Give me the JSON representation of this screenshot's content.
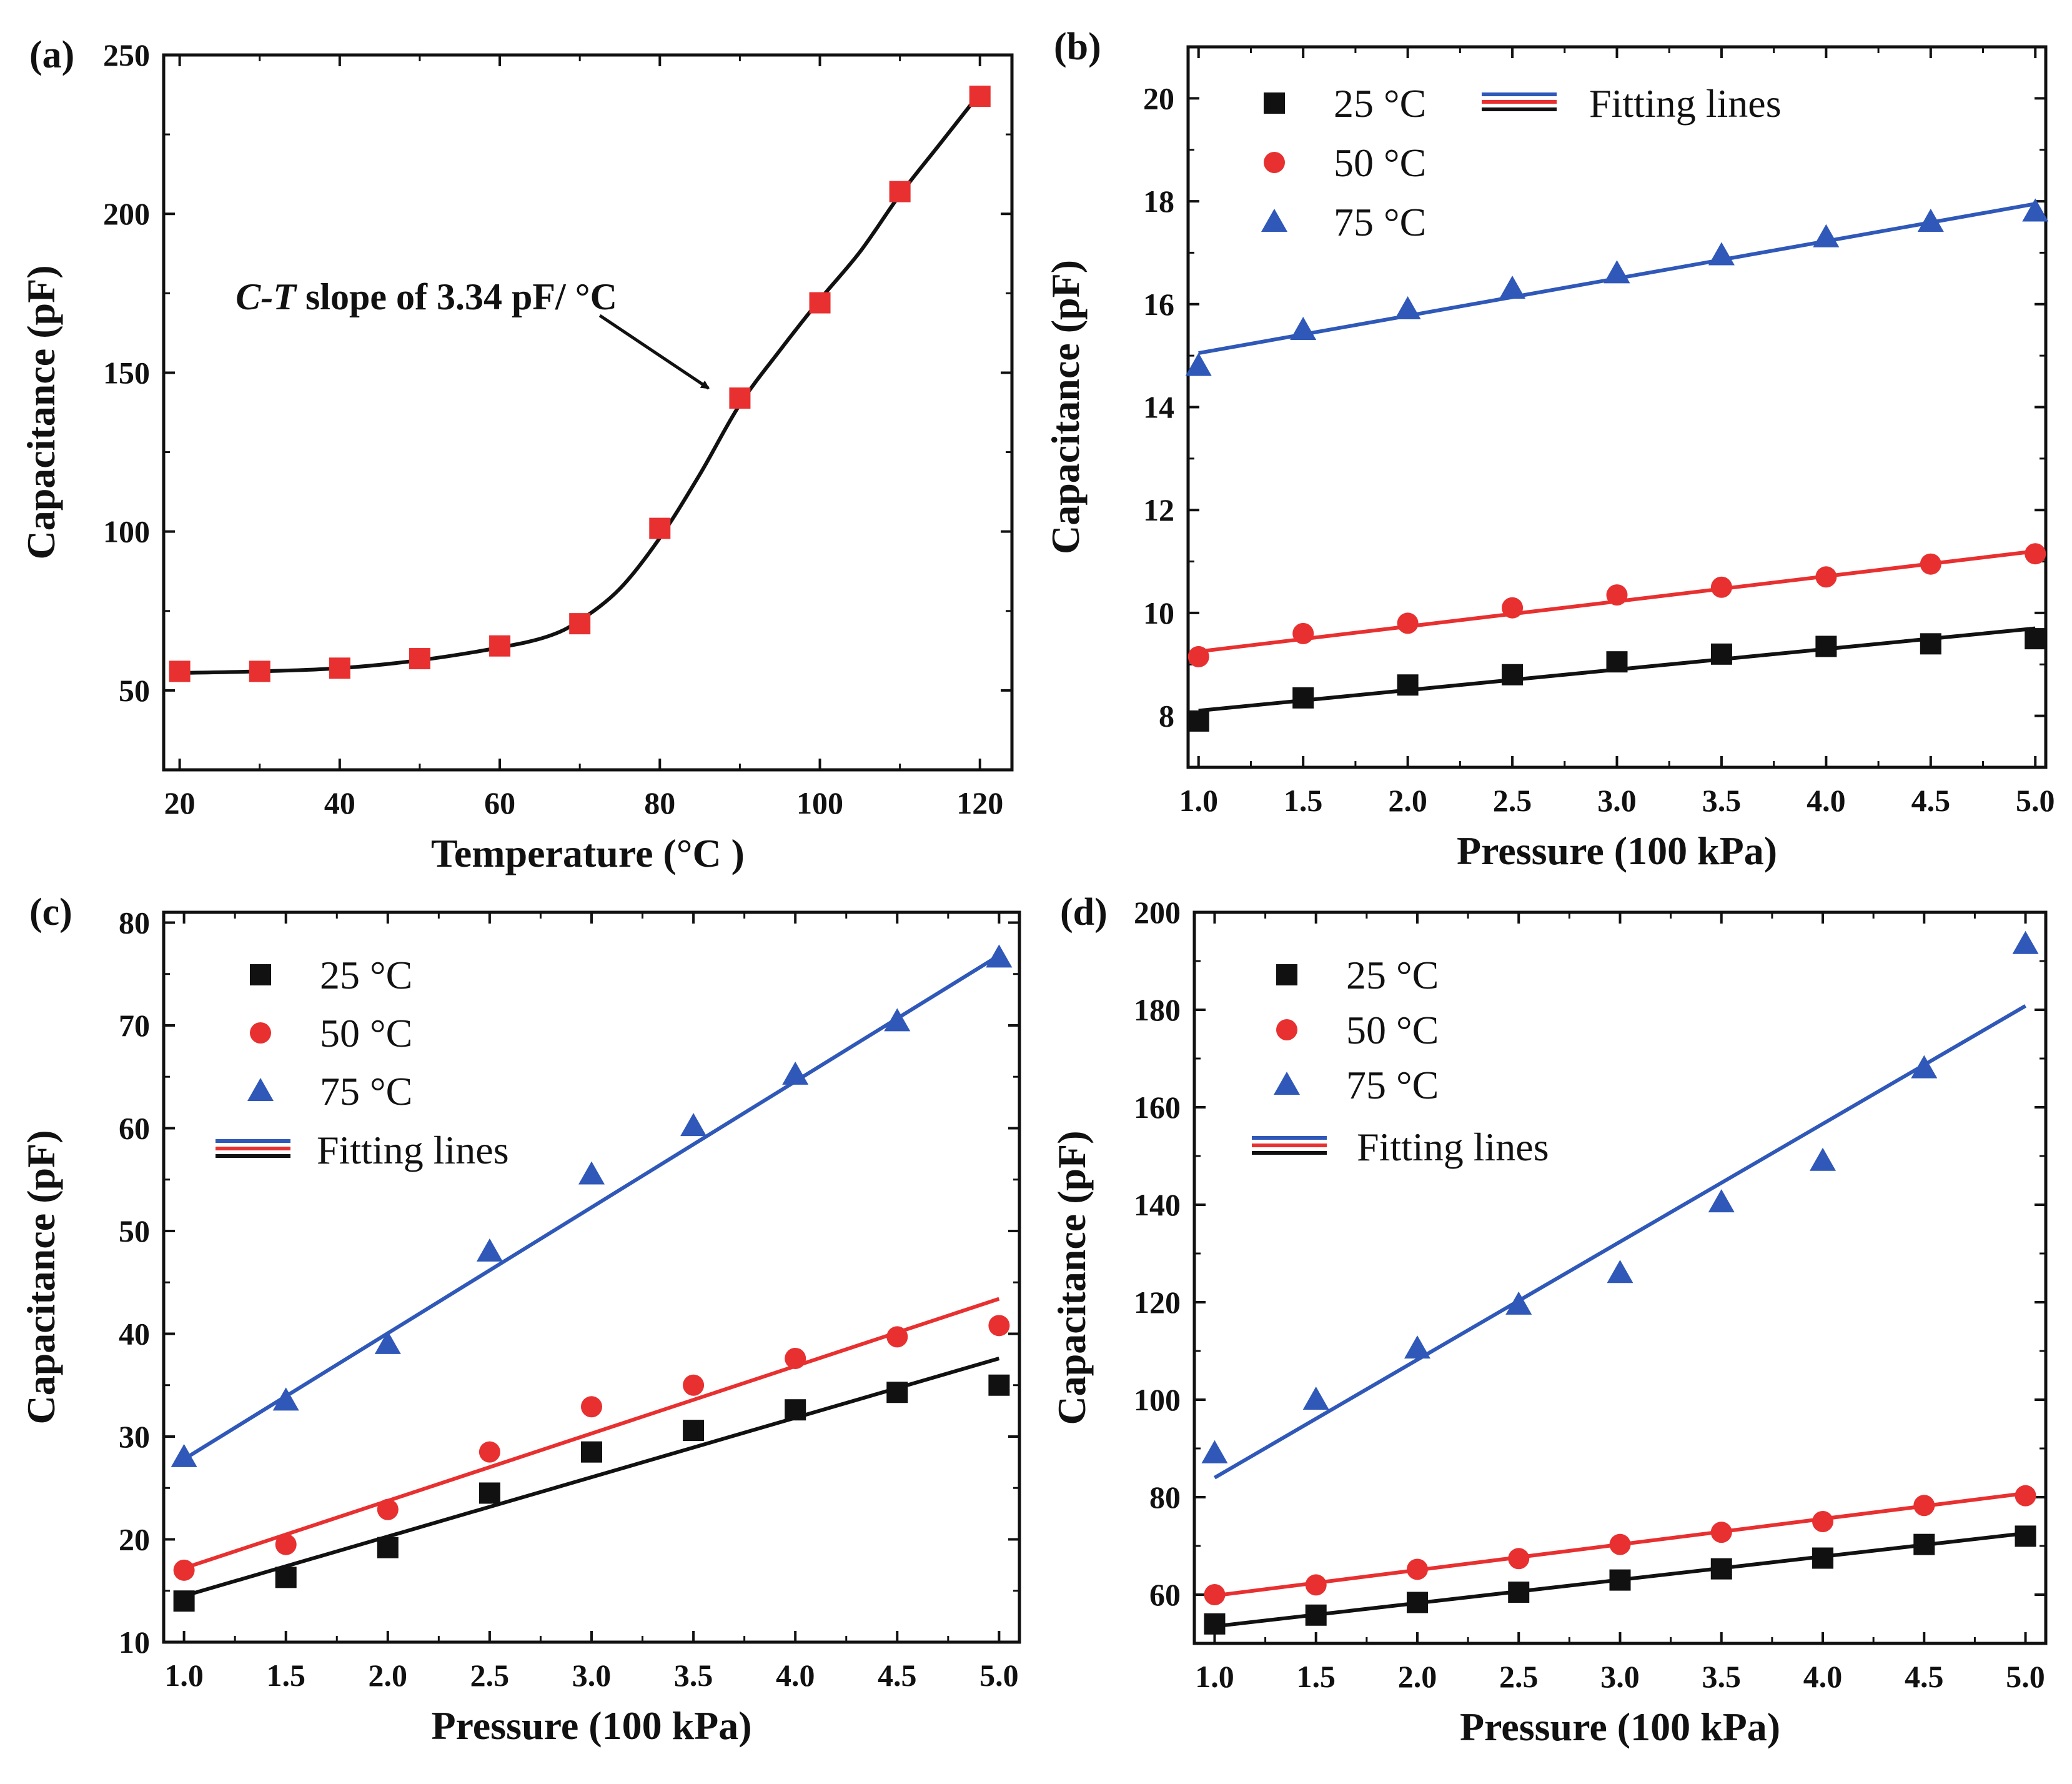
{
  "chart_data": [
    {
      "id": "a",
      "type": "line",
      "panel_label": "(a)",
      "xlabel": "Temperature (°C )",
      "ylabel": "Capacitance (pF)",
      "xlim": [
        18,
        124
      ],
      "ylim": [
        25,
        250
      ],
      "xticks": [
        20,
        40,
        60,
        80,
        100,
        120
      ],
      "yticks": [
        50,
        100,
        150,
        200,
        250
      ],
      "decimals": 0,
      "series": [
        {
          "name": "Capacitance",
          "marker": "square",
          "color": "#e83030",
          "line_color": "#111111",
          "x": [
            20,
            30,
            40,
            50,
            60,
            70,
            80,
            90,
            100,
            110,
            120
          ],
          "y": [
            56,
            56,
            57,
            60,
            64,
            71,
            101,
            142,
            172,
            207,
            237
          ],
          "fit": {
            "kind": "curve",
            "points": [
              [
                20,
                55.5
              ],
              [
                30,
                56
              ],
              [
                40,
                57
              ],
              [
                50,
                59.5
              ],
              [
                60,
                63.5
              ],
              [
                66,
                67
              ],
              [
                70,
                72
              ],
              [
                75,
                82
              ],
              [
                80,
                98
              ],
              [
                85,
                118
              ],
              [
                90,
                140
              ],
              [
                95,
                157
              ],
              [
                100,
                173
              ],
              [
                105,
                188
              ],
              [
                110,
                206
              ],
              [
                115,
                222
              ],
              [
                120,
                238
              ]
            ]
          }
        }
      ],
      "annotation": {
        "italic": "C-T",
        "text": " slope of 3.34 pF/ °C",
        "arrow_from": [
          86,
          167
        ],
        "arrow_to": [
          90,
          150
        ]
      }
    },
    {
      "id": "b",
      "type": "scatter",
      "panel_label": "(b)",
      "xlabel": "Pressure (100 kPa)",
      "ylabel": "Capacitance (pF)",
      "xlim": [
        0.95,
        5.05
      ],
      "ylim": [
        7,
        21
      ],
      "xticks": [
        1.0,
        1.5,
        2.0,
        2.5,
        3.0,
        3.5,
        4.0,
        4.5,
        5.0
      ],
      "yticks": [
        8,
        10,
        12,
        14,
        16,
        18,
        20
      ],
      "decimals": 0,
      "legend_fitting_label": "Fitting lines",
      "series": [
        {
          "name": "25 °C",
          "marker": "square",
          "color": "#111111",
          "x": [
            1.0,
            1.5,
            2.0,
            2.5,
            3.0,
            3.5,
            4.0,
            4.5,
            5.0
          ],
          "y": [
            7.9,
            8.35,
            8.6,
            8.8,
            9.05,
            9.2,
            9.35,
            9.4,
            9.5
          ],
          "fit": {
            "kind": "line",
            "x0": 1.0,
            "y0": 8.1,
            "x1": 5.0,
            "y1": 9.7
          }
        },
        {
          "name": "50 °C",
          "marker": "circle",
          "color": "#e83030",
          "x": [
            1.0,
            1.5,
            2.0,
            2.5,
            3.0,
            3.5,
            4.0,
            4.5,
            5.0
          ],
          "y": [
            9.15,
            9.6,
            9.8,
            10.1,
            10.35,
            10.5,
            10.7,
            10.95,
            11.15
          ],
          "fit": {
            "kind": "line",
            "x0": 1.0,
            "y0": 9.25,
            "x1": 5.0,
            "y1": 11.2
          }
        },
        {
          "name": "75 °C",
          "marker": "triangle",
          "color": "#2f58b8",
          "x": [
            1.0,
            1.5,
            2.0,
            2.5,
            3.0,
            3.5,
            4.0,
            4.5,
            5.0
          ],
          "y": [
            14.8,
            15.5,
            15.9,
            16.3,
            16.6,
            16.95,
            17.3,
            17.6,
            17.8
          ],
          "fit": {
            "kind": "line",
            "x0": 1.0,
            "y0": 15.05,
            "x1": 5.0,
            "y1": 17.95
          }
        }
      ]
    },
    {
      "id": "c",
      "type": "scatter",
      "panel_label": "(c)",
      "xlabel": "Pressure (100 kPa)",
      "ylabel": "Capacitance (pF)",
      "xlim": [
        0.9,
        5.1
      ],
      "ylim": [
        10,
        81
      ],
      "xticks": [
        1.0,
        1.5,
        2.0,
        2.5,
        3.0,
        3.5,
        4.0,
        4.5,
        5.0
      ],
      "yticks": [
        10,
        20,
        30,
        40,
        50,
        60,
        70,
        80
      ],
      "decimals": 0,
      "legend_fitting_label": "Fitting lines",
      "series": [
        {
          "name": "25 °C",
          "marker": "square",
          "color": "#111111",
          "x": [
            1.0,
            1.5,
            2.0,
            2.5,
            3.0,
            3.5,
            4.0,
            4.5,
            5.0
          ],
          "y": [
            14,
            16.3,
            19.2,
            24.5,
            28.5,
            30.6,
            32.6,
            34.3,
            35
          ],
          "fit": {
            "kind": "line",
            "x0": 1.0,
            "y0": 14.5,
            "x1": 5.0,
            "y1": 37.6
          }
        },
        {
          "name": "50 °C",
          "marker": "circle",
          "color": "#e83030",
          "x": [
            1.0,
            1.5,
            2.0,
            2.5,
            3.0,
            3.5,
            4.0,
            4.5,
            5.0
          ],
          "y": [
            17,
            19.5,
            22.9,
            28.5,
            32.9,
            35,
            37.6,
            39.7,
            40.8
          ],
          "fit": {
            "kind": "line",
            "x0": 1.0,
            "y0": 17.2,
            "x1": 5.0,
            "y1": 43.4
          }
        },
        {
          "name": "75 °C",
          "marker": "triangle",
          "color": "#2f58b8",
          "x": [
            1.0,
            1.5,
            2.0,
            2.5,
            3.0,
            3.5,
            4.0,
            4.5,
            5.0
          ],
          "y": [
            28,
            33.5,
            39,
            48,
            55.5,
            60.2,
            65.2,
            70.4,
            76.6
          ],
          "fit": {
            "kind": "line",
            "x0": 1.0,
            "y0": 27.8,
            "x1": 5.0,
            "y1": 76.8
          }
        }
      ]
    },
    {
      "id": "d",
      "type": "scatter",
      "panel_label": "(d)",
      "xlabel": "Pressure (100 kPa)",
      "ylabel": "Capacitance (pF)",
      "xlim": [
        0.9,
        5.1
      ],
      "ylim": [
        50,
        200
      ],
      "xticks": [
        1.0,
        1.5,
        2.0,
        2.5,
        3.0,
        3.5,
        4.0,
        4.5,
        5.0
      ],
      "yticks": [
        60,
        80,
        100,
        120,
        140,
        160,
        180,
        200
      ],
      "decimals": 0,
      "legend_fitting_label": "Fitting lines",
      "series": [
        {
          "name": "25 °C",
          "marker": "square",
          "color": "#111111",
          "x": [
            1.0,
            1.5,
            2.0,
            2.5,
            3.0,
            3.5,
            4.0,
            4.5,
            5.0
          ],
          "y": [
            54,
            55.8,
            58.4,
            60.5,
            63,
            65.3,
            67.5,
            70.3,
            72
          ],
          "fit": {
            "kind": "line",
            "x0": 1.0,
            "y0": 53.5,
            "x1": 5.0,
            "y1": 72.6
          }
        },
        {
          "name": "50 °C",
          "marker": "circle",
          "color": "#e83030",
          "x": [
            1.0,
            1.5,
            2.0,
            2.5,
            3.0,
            3.5,
            4.0,
            4.5,
            5.0
          ],
          "y": [
            60,
            62,
            65.2,
            67.4,
            70.3,
            72.8,
            75,
            78.3,
            80.3
          ],
          "fit": {
            "kind": "line",
            "x0": 1.0,
            "y0": 59.8,
            "x1": 5.0,
            "y1": 80.8
          }
        },
        {
          "name": "75 °C",
          "marker": "triangle",
          "color": "#2f58b8",
          "x": [
            1.0,
            1.5,
            2.0,
            2.5,
            3.0,
            3.5,
            4.0,
            4.5,
            5.0
          ],
          "y": [
            89,
            100,
            110.5,
            119.5,
            126,
            140.5,
            149,
            168,
            193.5
          ],
          "fit": {
            "kind": "line",
            "x0": 1.0,
            "y0": 84,
            "x1": 5.0,
            "y1": 180.8
          }
        }
      ]
    }
  ]
}
